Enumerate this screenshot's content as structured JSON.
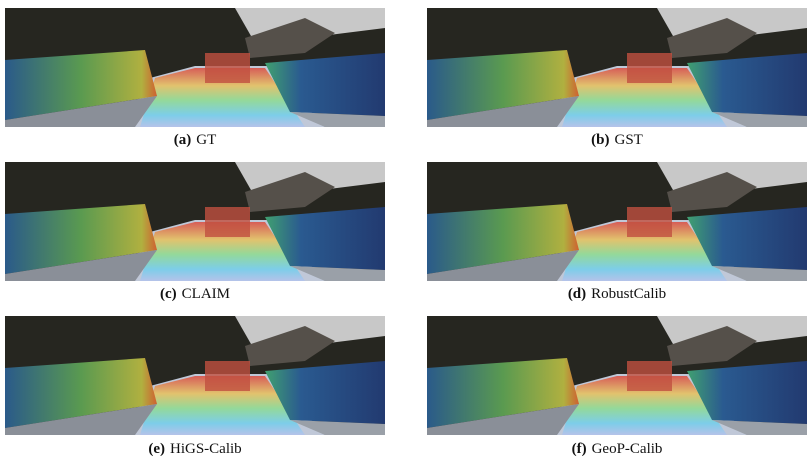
{
  "figures": [
    {
      "label": "(a)",
      "caption": "GT"
    },
    {
      "label": "(b)",
      "caption": "GST"
    },
    {
      "label": "(c)",
      "caption": "CLAIM"
    },
    {
      "label": "(d)",
      "caption": "RobustCalib"
    },
    {
      "label": "(e)",
      "caption": "HiGS-Calib"
    },
    {
      "label": "(f)",
      "caption": "GeoP-Calib"
    }
  ]
}
